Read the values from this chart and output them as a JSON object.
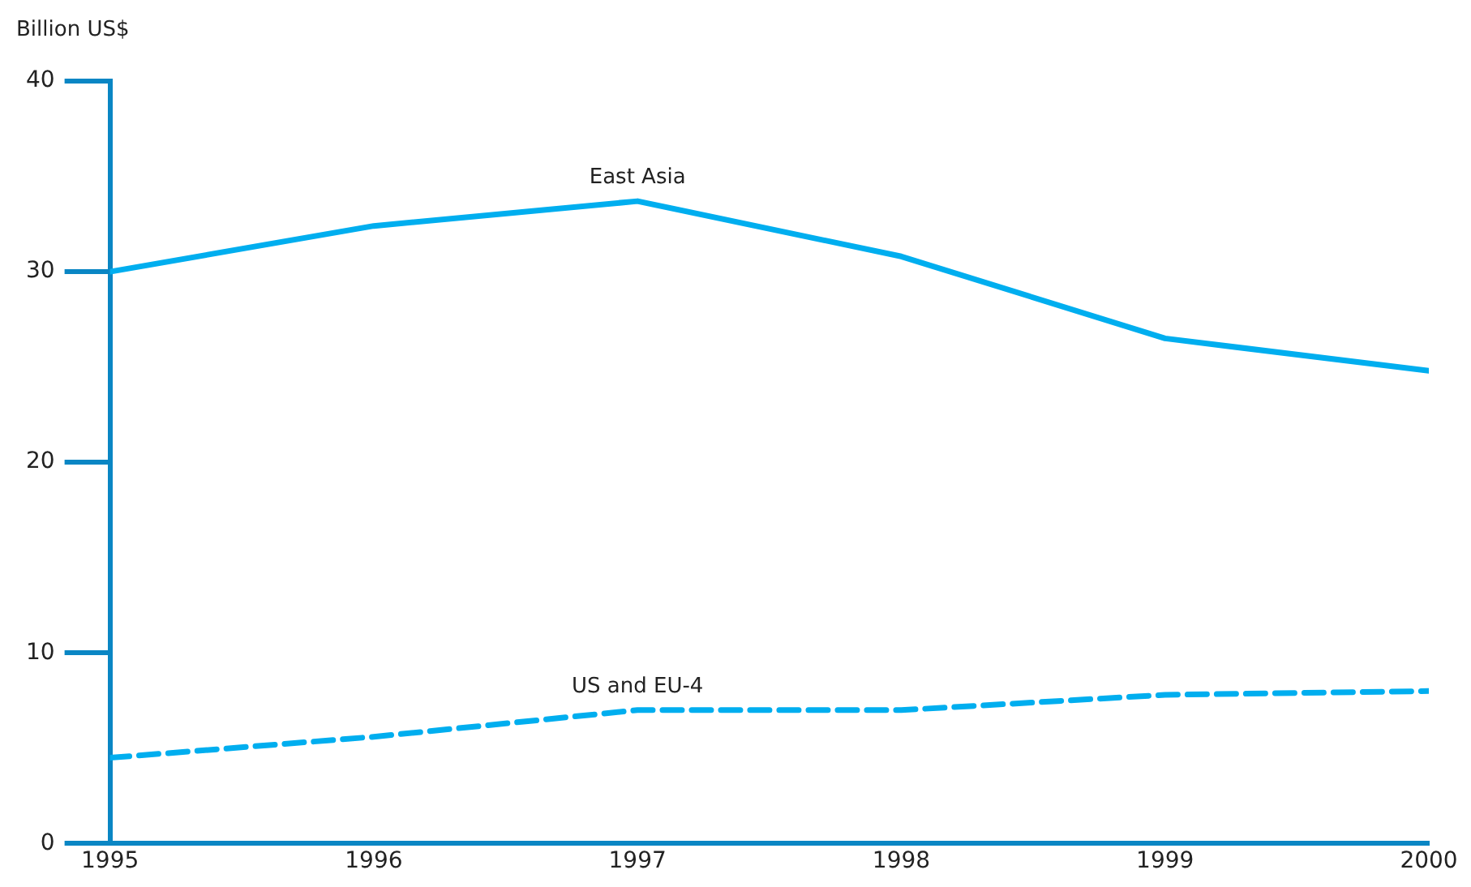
{
  "chart_data": {
    "type": "line",
    "ylabel": "Billion US$",
    "x": [
      1995,
      1996,
      1997,
      1998,
      1999,
      2000
    ],
    "series": [
      {
        "name": "East Asia",
        "color": "#00aeef",
        "line_style": "solid",
        "values": [
          30,
          32.4,
          33.7,
          30.8,
          26.5,
          24.8
        ]
      },
      {
        "name": "US and EU-4",
        "color": "#00aeef",
        "line_style": "dashed",
        "values": [
          4.5,
          5.6,
          7.0,
          7.0,
          7.8,
          8.0
        ]
      }
    ],
    "xlim": [
      1995,
      2000
    ],
    "xticks": [
      1995,
      1996,
      1997,
      1998,
      1999,
      2000
    ],
    "ylim": [
      0,
      40
    ],
    "yticks": [
      0,
      10,
      20,
      30,
      40
    ],
    "grid": false,
    "legend": false,
    "marker": "none"
  }
}
